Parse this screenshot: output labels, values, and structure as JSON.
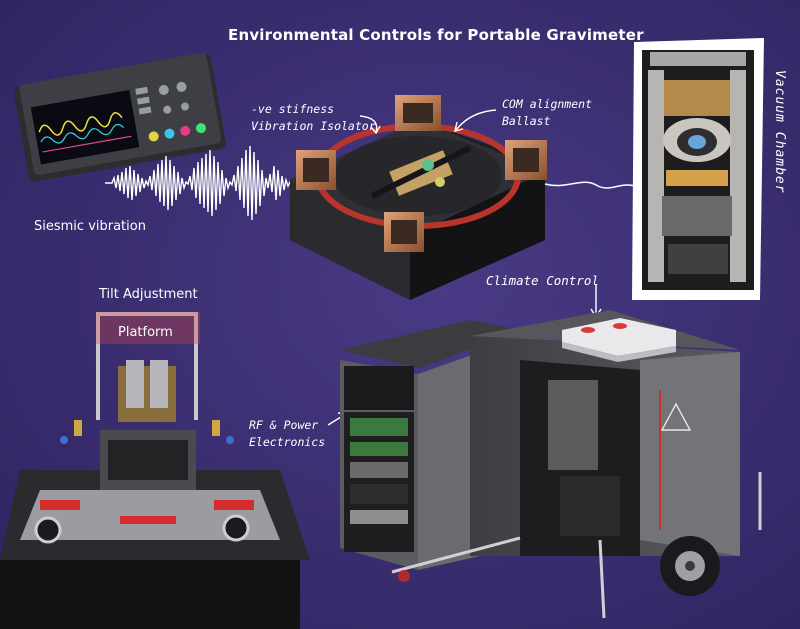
{
  "labels": {
    "title": "Environmental Controls for Portable Gravimeter",
    "isolator_line1": "-ve stifness",
    "isolator_line2": "Vibration Isolator",
    "com_line1": "COM alignment",
    "com_line2": "Ballast",
    "vacuum_chamber": "Vacuum Chamber",
    "seismic": "Siesmic vibration",
    "tilt": "Tilt Adjustment",
    "platform": "Platform",
    "climate": "Climate Control",
    "rf_line1": "RF & Power",
    "rf_line2": "Electronics"
  },
  "colors": {
    "background": "#3b2f73",
    "text": "#ffffff",
    "accent_red": "#c6312e",
    "copper": "#b9774f"
  }
}
